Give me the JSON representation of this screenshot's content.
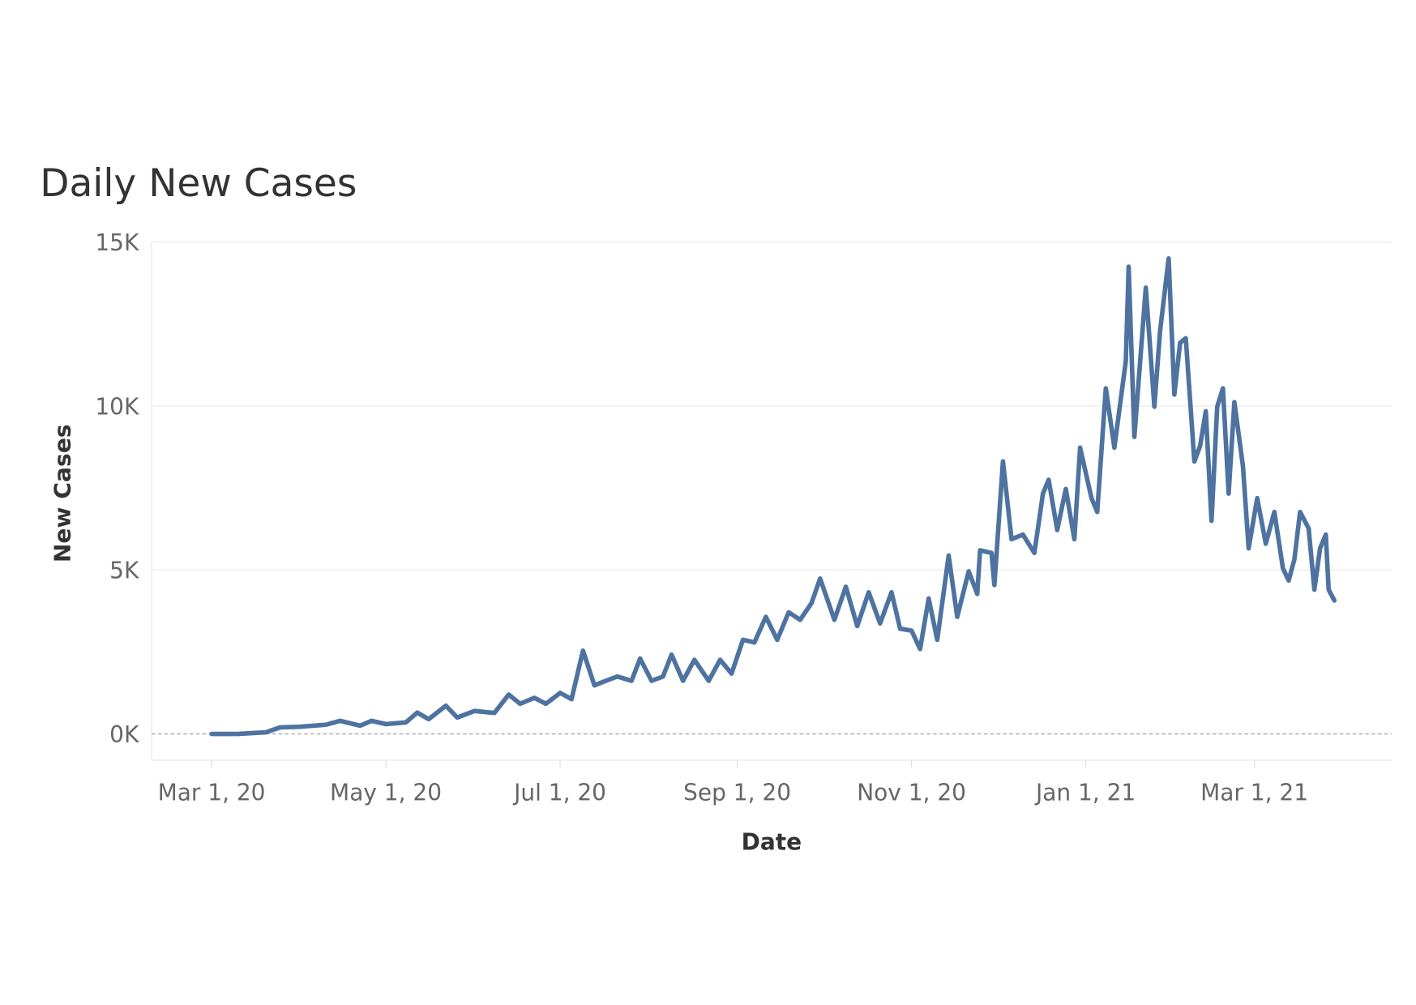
{
  "chart_data": {
    "type": "line",
    "title": "Daily New Cases",
    "x_label": "Date",
    "y_label": "New Cases",
    "x": [
      "2020-03-01",
      "2020-03-10",
      "2020-03-20",
      "2020-03-25",
      "2020-04-01",
      "2020-04-10",
      "2020-04-15",
      "2020-04-22",
      "2020-04-26",
      "2020-05-01",
      "2020-05-08",
      "2020-05-12",
      "2020-05-16",
      "2020-05-22",
      "2020-05-26",
      "2020-06-01",
      "2020-06-08",
      "2020-06-13",
      "2020-06-17",
      "2020-06-22",
      "2020-06-26",
      "2020-07-01",
      "2020-07-05",
      "2020-07-09",
      "2020-07-13",
      "2020-07-17",
      "2020-07-21",
      "2020-07-26",
      "2020-07-29",
      "2020-08-02",
      "2020-08-06",
      "2020-08-09",
      "2020-08-13",
      "2020-08-17",
      "2020-08-22",
      "2020-08-26",
      "2020-08-30",
      "2020-09-03",
      "2020-09-07",
      "2020-09-11",
      "2020-09-15",
      "2020-09-19",
      "2020-09-23",
      "2020-09-27",
      "2020-09-30",
      "2020-10-05",
      "2020-10-09",
      "2020-10-13",
      "2020-10-17",
      "2020-10-21",
      "2020-10-25",
      "2020-10-28",
      "2020-11-01",
      "2020-11-04",
      "2020-11-07",
      "2020-11-10",
      "2020-11-14",
      "2020-11-17",
      "2020-11-21",
      "2020-11-24",
      "2020-11-25",
      "2020-11-29",
      "2020-11-30",
      "2020-12-03",
      "2020-12-06",
      "2020-12-10",
      "2020-12-14",
      "2020-12-17",
      "2020-12-19",
      "2020-12-22",
      "2020-12-25",
      "2020-12-28",
      "2020-12-30",
      "2021-01-03",
      "2021-01-05",
      "2021-01-08",
      "2021-01-11",
      "2021-01-15",
      "2021-01-16",
      "2021-01-18",
      "2021-01-22",
      "2021-01-25",
      "2021-01-27",
      "2021-01-30",
      "2021-02-01",
      "2021-02-03",
      "2021-02-05",
      "2021-02-08",
      "2021-02-10",
      "2021-02-12",
      "2021-02-14",
      "2021-02-16",
      "2021-02-18",
      "2021-02-20",
      "2021-02-22",
      "2021-02-25",
      "2021-02-27",
      "2021-03-02",
      "2021-03-05",
      "2021-03-08",
      "2021-03-11",
      "2021-03-13",
      "2021-03-15",
      "2021-03-17",
      "2021-03-20",
      "2021-03-22",
      "2021-03-24",
      "2021-03-26",
      "2021-03-27",
      "2021-03-29"
    ],
    "series": [
      {
        "name": "New Cases",
        "color": "#4e73a0",
        "values": [
          0,
          0,
          50,
          200,
          220,
          280,
          400,
          250,
          400,
          300,
          350,
          650,
          450,
          860,
          500,
          700,
          640,
          1200,
          920,
          1100,
          920,
          1250,
          1060,
          2540,
          1480,
          1620,
          1750,
          1620,
          2300,
          1620,
          1750,
          2420,
          1620,
          2260,
          1620,
          2260,
          1840,
          2870,
          2790,
          3570,
          2870,
          3710,
          3480,
          3990,
          4740,
          3480,
          4490,
          3290,
          4320,
          3370,
          4320,
          3210,
          3150,
          2590,
          4130,
          2870,
          5440,
          3570,
          4960,
          4270,
          5600,
          5520,
          4540,
          8310,
          5940,
          6080,
          5520,
          7330,
          7750,
          6220,
          7470,
          5940,
          8730,
          7190,
          6770,
          10540,
          8730,
          11370,
          14250,
          9060,
          13610,
          9980,
          12290,
          14500,
          10350,
          11930,
          12070,
          8310,
          8780,
          9840,
          6500,
          9980,
          10540,
          7330,
          10120,
          8170,
          5660,
          7190,
          5800,
          6770,
          5050,
          4680,
          5320,
          6770,
          6270,
          4400,
          5660,
          6080,
          4400,
          4070
        ]
      }
    ],
    "xlim": [
      "2020-02-09",
      "2021-04-18"
    ],
    "xticks": [
      {
        "value": "2020-03-01",
        "label": "Mar 1, 20"
      },
      {
        "value": "2020-05-01",
        "label": "May 1, 20"
      },
      {
        "value": "2020-07-01",
        "label": "Jul 1, 20"
      },
      {
        "value": "2020-09-01",
        "label": "Sep 1, 20"
      },
      {
        "value": "2020-11-01",
        "label": "Nov 1, 20"
      },
      {
        "value": "2021-01-01",
        "label": "Jan 1, 21"
      },
      {
        "value": "2021-03-01",
        "label": "Mar 1, 21"
      }
    ],
    "ylim": [
      -800,
      15000
    ],
    "yticks": [
      {
        "value": 0,
        "label": "0K"
      },
      {
        "value": 5000,
        "label": "5K"
      },
      {
        "value": 10000,
        "label": "10K"
      },
      {
        "value": 15000,
        "label": "15K"
      }
    ],
    "grid": true
  }
}
